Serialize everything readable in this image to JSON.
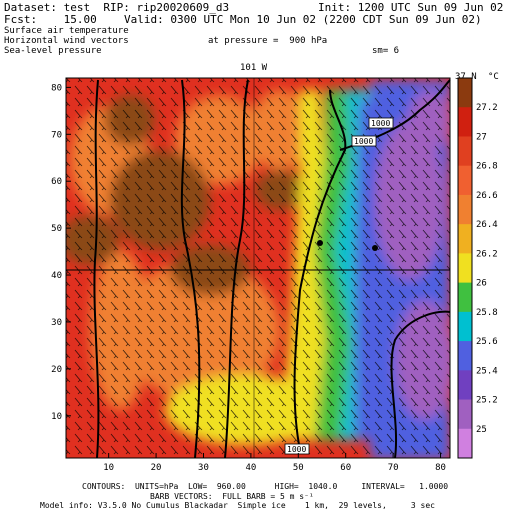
{
  "header": {
    "dataset_line": "Dataset: test  RIP: rip20020609_d3",
    "init_line": "Init: 1200 UTC Sun 09 Jun 02",
    "fcst_line": "Fcst:    15.00",
    "valid_line": "Valid: 0300 UTC Mon 10 Jun 02 (2200 CDT Sun 09 Jun 02)",
    "field1": "Surface air temperature",
    "field2": "Horizontal wind vectors",
    "pressure_text": "at pressure =  900 hPa",
    "field3": "Sea-level pressure",
    "sm_text": "sm= 6"
  },
  "plot": {
    "top_marker_left": "101 W",
    "top_marker_right": "37 N",
    "contour_labels": [
      "1000",
      "1000",
      "1000"
    ],
    "colors": {
      "brown": "#8b4a17",
      "red": "#e03020",
      "orange": "#f08030",
      "yellow": "#f0e020",
      "green": "#40c040",
      "cyan": "#00c0d0",
      "blue": "#5060e0",
      "purple": "#a060c0"
    }
  },
  "chart_data": {
    "type": "heatmap",
    "x_ticks": [
      "10",
      "20",
      "30",
      "40",
      "50",
      "60",
      "70",
      "80"
    ],
    "y_ticks": [
      "10",
      "20",
      "30",
      "40",
      "50",
      "60",
      "70",
      "80"
    ],
    "xlim": [
      1,
      82
    ],
    "ylim": [
      1,
      82
    ],
    "colorbar_unit": "°C",
    "colorbar_levels": [
      "27.2",
      "27",
      "26.8",
      "26.6",
      "26.4",
      "26.2",
      "26",
      "25.8",
      "25.6",
      "25.4",
      "25.2",
      "25"
    ],
    "colorbar_colors": [
      "#8b3a0f",
      "#d02010",
      "#e04020",
      "#f06030",
      "#f08030",
      "#f0b020",
      "#f0e020",
      "#40c040",
      "#00c0d0",
      "#5060e0",
      "#7040c0",
      "#a060c0",
      "#d080e0"
    ]
  },
  "footer": {
    "contours": "CONTOURS:  UNITS=hPa  LOW=  960.00      HIGH=  1040.0     INTERVAL=   1.0000",
    "barbs": "BARB VECTORS:  FULL BARB = 5 m s⁻¹",
    "model_info": "Model info: V3.5.0 No Cumulus Blackadar  Simple ice    1 km,  29 levels,     3 sec"
  }
}
